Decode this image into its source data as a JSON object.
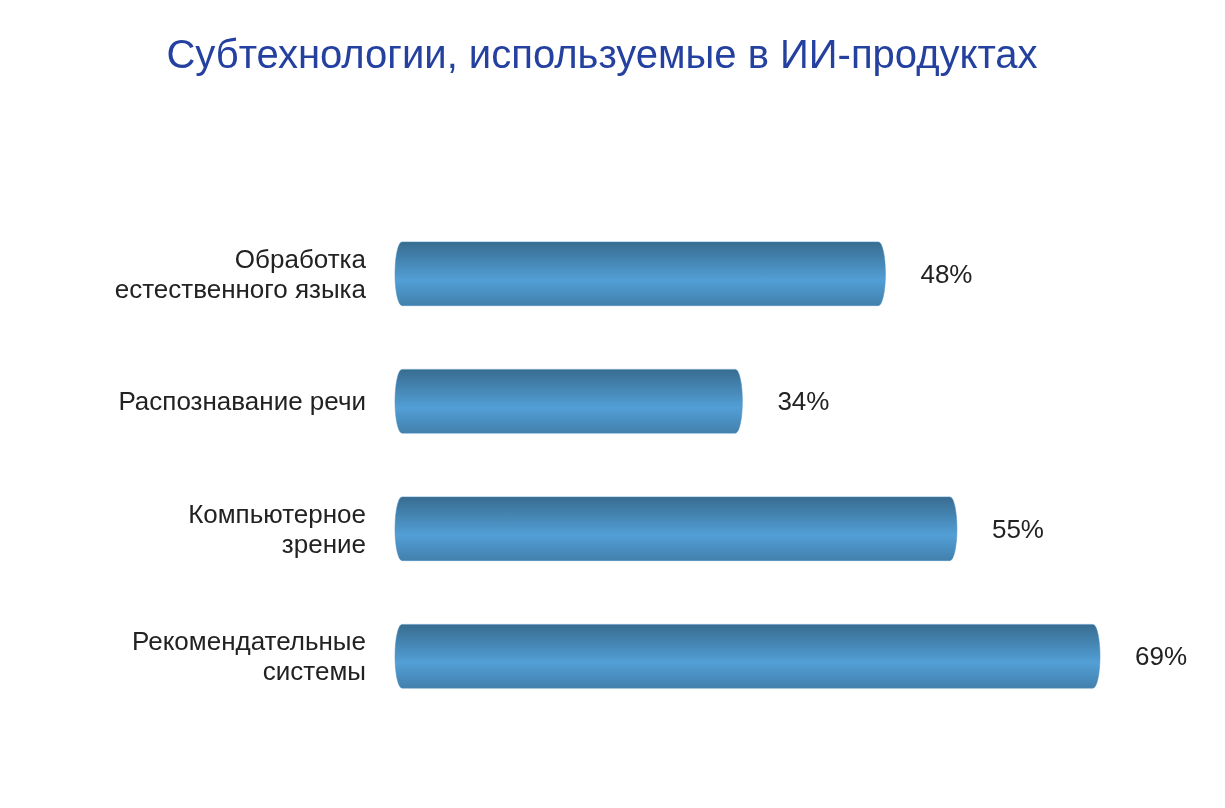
{
  "chart_data": {
    "type": "bar",
    "orientation": "horizontal",
    "title": "Субтехнологии, используемые в ИИ-продуктах",
    "categories": [
      "Обработка\nестественного языка",
      "Распознавание речи",
      "Компьютерное\nзрение",
      "Рекомендательные\nсистемы"
    ],
    "values": [
      48,
      34,
      55,
      69
    ],
    "value_labels": [
      "48%",
      "34%",
      "55%",
      "69%"
    ],
    "color": "#4a8fc0"
  }
}
